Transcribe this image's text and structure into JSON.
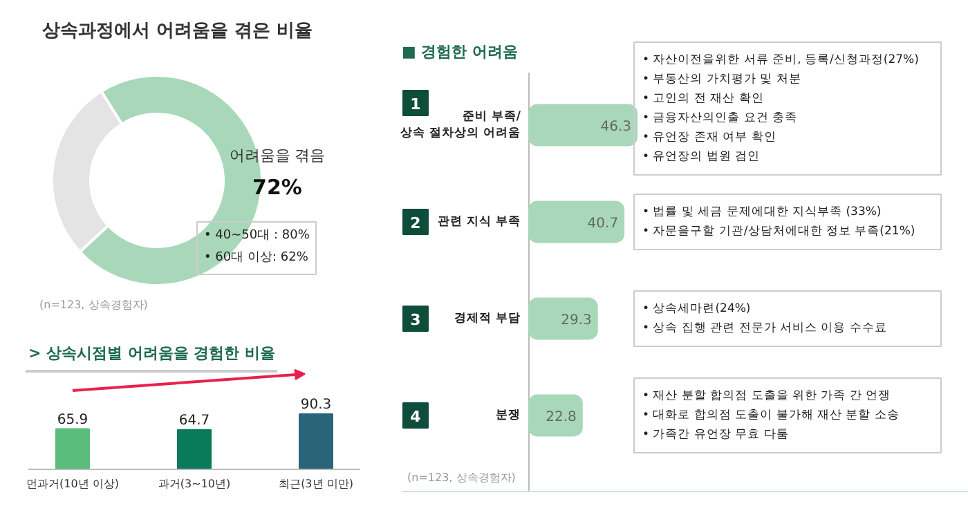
{
  "chart_data": [
    {
      "type": "donut",
      "title": "상속과정에서 어려움을 겪은 비율",
      "categories": [
        "어려움을 겪음",
        null
      ],
      "values": [
        72,
        28
      ],
      "colors": [
        "#a8d8b9",
        "#e4e4e4"
      ],
      "value_labels": [
        "72%",
        null
      ],
      "annotations": [
        "• 40~50대 : 80%",
        "• 60대 이상: 62%",
        "(n=123, 상속경험자)"
      ]
    },
    {
      "type": "bar",
      "title": "> 상속시점별  어려움을 경험한 비율",
      "categories": [
        "먼과거(10년 이상)",
        "과거(3~10년)",
        "최근(3년 미만)"
      ],
      "values": [
        65.9,
        64.7,
        90.3
      ],
      "colors": [
        "#5bbd7c",
        "#0a7a5a",
        "#2a6478"
      ],
      "data_labels": true
    },
    {
      "type": "bar",
      "orientation": "horizontal",
      "title": "■ 경험한 어려움",
      "categories": [
        "준비 부족/\n상속 절차상의 어려움",
        "관련 지식 부족",
        "경제적 부담",
        "분쟁"
      ],
      "values": [
        46.3,
        40.7,
        29.3,
        22.8
      ],
      "color": "#a8d8b9",
      "data_labels": true,
      "annotations": [
        "1",
        "2",
        "3",
        "4",
        "• 자산이전을위한 서류 준비, 등록/신청과정(27%)\n• 부동산의 가치평가 및 처분\n• 고인의 전 재산 확인\n• 금융자산의인출 요건 충족\n• 유언장 존재 여부 확인\n• 유언장의 법원 검인",
        "• 법률 및 세금 문제에대한 지식부족 (33%)\n• 자문을구할 기관/상담처에대한 정보 부족(21%)",
        "• 상속세마련(24%)\n• 상속 집행 관련 전문가 서비스 이용 수수료",
        "• 재산 분할 합의점 도출을 위한 가족 간 언쟁\n• 대화로 합의점 도출이 불가해 재산 분할 소송\n• 가족간 유언장 무효 다툼",
        "(n=123, 상속경험자)"
      ]
    }
  ]
}
